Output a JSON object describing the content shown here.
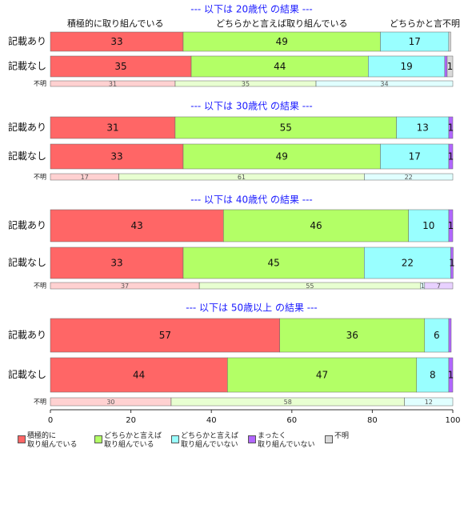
{
  "chart_data": {
    "type": "bar",
    "orientation": "horizontal",
    "stacked": true,
    "header_labels": [
      "積極的に取り組んでいる",
      "どちらかと言えば取り組んでいる",
      "どちらかと言",
      "不明"
    ],
    "groups": [
      {
        "title": "--- 以下は 20歳代 の結果 ---",
        "categories": [
          "記載あり",
          "記載なし",
          "不明"
        ]
      },
      {
        "title": "--- 以下は 30歳代 の結果 ---",
        "categories": [
          "記載あり",
          "記載なし",
          "不明"
        ]
      },
      {
        "title": "--- 以下は 40歳代 の結果 ---",
        "categories": [
          "記載あり",
          "記載なし",
          "不明"
        ]
      },
      {
        "title": "--- 以下は 50歳以上 の結果 ---",
        "categories": [
          "記載あり",
          "記載なし",
          "不明"
        ]
      }
    ],
    "series": [
      {
        "name": "積極的に\n取り組んでいる",
        "color": "#ff6666",
        "values": [
          33,
          35,
          31,
          31,
          33,
          17,
          43,
          33,
          37,
          57,
          44,
          30
        ],
        "value_labels": [
          "33",
          "35",
          "31",
          "31",
          "33",
          "17",
          "43",
          "33",
          "37",
          "57",
          "44",
          "30"
        ]
      },
      {
        "name": "どちらかと言えば\n取り組んでいる",
        "color": "#b3ff66",
        "values": [
          49,
          44,
          35,
          55,
          49,
          61,
          46,
          45,
          55,
          36,
          47,
          58
        ],
        "value_labels": [
          "49",
          "44",
          "35",
          "55",
          "49",
          "61",
          "46",
          "45",
          "55",
          "36",
          "47",
          "58"
        ]
      },
      {
        "name": "どちらかと言えば\n取り組んでいない",
        "color": "#99ffff",
        "values": [
          17,
          19,
          34,
          13,
          17,
          22,
          10,
          21.5,
          1,
          6,
          8,
          12
        ],
        "value_labels": [
          "17",
          "19",
          "34",
          "13",
          "17",
          "22",
          "10",
          "22",
          "1",
          "6",
          "8",
          "12"
        ]
      },
      {
        "name": "まったく\n取り組んでいない",
        "color": "#b266ff",
        "values": [
          0,
          0.6,
          0,
          1,
          1,
          0,
          1,
          0.6,
          7,
          0.6,
          1,
          0
        ],
        "value_labels": [
          null,
          null,
          null,
          "1",
          "1",
          null,
          "1",
          "1",
          "7",
          null,
          "1",
          null
        ]
      },
      {
        "name": "不明",
        "color": "#d9d9d9",
        "values": [
          0.5,
          1.4,
          0,
          0,
          0,
          0,
          0,
          0,
          0,
          0,
          0,
          0
        ],
        "value_labels": [
          null,
          "1",
          null,
          null,
          null,
          null,
          null,
          null,
          null,
          null,
          null,
          null
        ]
      }
    ],
    "xlim": [
      0,
      100
    ],
    "xticks": [
      0,
      20,
      40,
      60,
      80,
      100
    ]
  }
}
